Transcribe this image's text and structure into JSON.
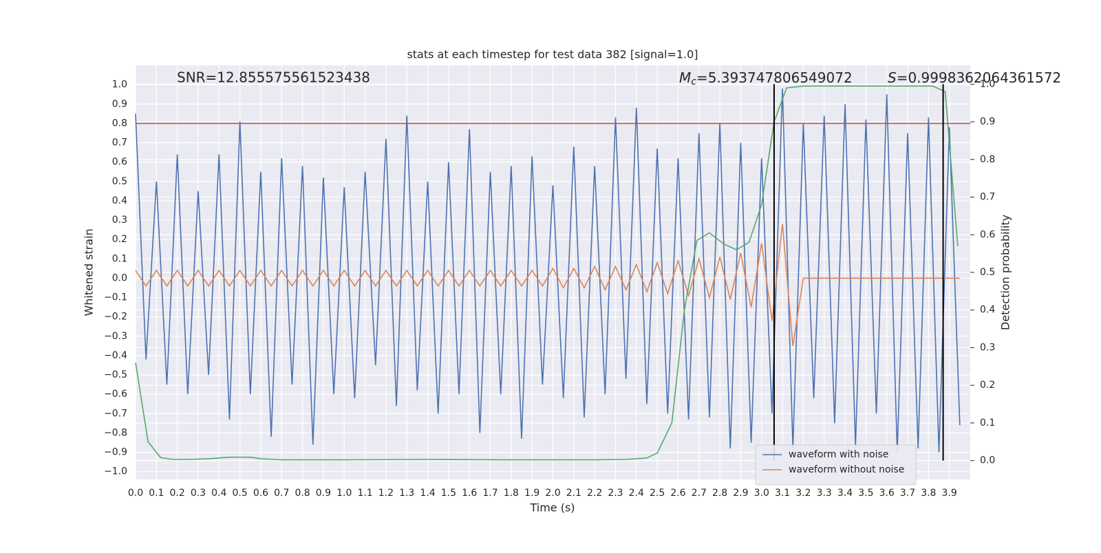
{
  "chart_data": {
    "type": "line",
    "title": "stats at each timestep for test data 382 [signal=1.0]",
    "xlabel": "Time (s)",
    "ylabel": "Whitened strain",
    "y2label": "Detection probability",
    "annotations": {
      "snr": "SNR=12.855575561523438",
      "mc": {
        "symbol": "M",
        "subscript": "c",
        "text": "=5.393747806549072"
      },
      "s": {
        "symbol": "S",
        "text": "=0.9998362064361572"
      }
    },
    "xlim": [
      0,
      4.0
    ],
    "ylim": [
      -1.04,
      1.1
    ],
    "y2lim": [
      -0.05,
      1.05
    ],
    "grid": true,
    "legend": "lower right",
    "xticks": [
      {
        "value": 0,
        "label": "0.0"
      },
      {
        "value": 0.1,
        "label": "0.1"
      },
      {
        "value": 0.2,
        "label": "0.2"
      },
      {
        "value": 0.3,
        "label": "0.3"
      },
      {
        "value": 0.4,
        "label": "0.4"
      },
      {
        "value": 0.5,
        "label": "0.5"
      },
      {
        "value": 0.6,
        "label": "0.6"
      },
      {
        "value": 0.7,
        "label": "0.7"
      },
      {
        "value": 0.8,
        "label": "0.8"
      },
      {
        "value": 0.9,
        "label": "0.9"
      },
      {
        "value": 1,
        "label": "1.0"
      },
      {
        "value": 1.1,
        "label": "1.1"
      },
      {
        "value": 1.2,
        "label": "1.2"
      },
      {
        "value": 1.3,
        "label": "1.3"
      },
      {
        "value": 1.4,
        "label": "1.4"
      },
      {
        "value": 1.5,
        "label": "1.5"
      },
      {
        "value": 1.6,
        "label": "1.6"
      },
      {
        "value": 1.7,
        "label": "1.7"
      },
      {
        "value": 1.8,
        "label": "1.8"
      },
      {
        "value": 1.9,
        "label": "1.9"
      },
      {
        "value": 2,
        "label": "2.0"
      },
      {
        "value": 2.1,
        "label": "2.1"
      },
      {
        "value": 2.2,
        "label": "2.2"
      },
      {
        "value": 2.3,
        "label": "2.3"
      },
      {
        "value": 2.4,
        "label": "2.4"
      },
      {
        "value": 2.5,
        "label": "2.5"
      },
      {
        "value": 2.6,
        "label": "2.6"
      },
      {
        "value": 2.7,
        "label": "2.7"
      },
      {
        "value": 2.8,
        "label": "2.8"
      },
      {
        "value": 2.9,
        "label": "2.9"
      },
      {
        "value": 3,
        "label": "3.0"
      },
      {
        "value": 3.1,
        "label": "3.1"
      },
      {
        "value": 3.2,
        "label": "3.2"
      },
      {
        "value": 3.3,
        "label": "3.3"
      },
      {
        "value": 3.4,
        "label": "3.4"
      },
      {
        "value": 3.5,
        "label": "3.5"
      },
      {
        "value": 3.6,
        "label": "3.6"
      },
      {
        "value": 3.7,
        "label": "3.7"
      },
      {
        "value": 3.8,
        "label": "3.8"
      },
      {
        "value": 3.9,
        "label": "3.9"
      }
    ],
    "yticks": [
      {
        "value": -1,
        "label": "−1.0"
      },
      {
        "value": -0.9,
        "label": "−0.9"
      },
      {
        "value": -0.8,
        "label": "−0.8"
      },
      {
        "value": -0.7,
        "label": "−0.7"
      },
      {
        "value": -0.6,
        "label": "−0.6"
      },
      {
        "value": -0.5,
        "label": "−0.5"
      },
      {
        "value": -0.4,
        "label": "−0.4"
      },
      {
        "value": -0.3,
        "label": "−0.3"
      },
      {
        "value": -0.2,
        "label": "−0.2"
      },
      {
        "value": -0.1,
        "label": "−0.1"
      },
      {
        "value": 0,
        "label": "0.0"
      },
      {
        "value": 0.1,
        "label": "0.1"
      },
      {
        "value": 0.2,
        "label": "0.2"
      },
      {
        "value": 0.3,
        "label": "0.3"
      },
      {
        "value": 0.4,
        "label": "0.4"
      },
      {
        "value": 0.5,
        "label": "0.5"
      },
      {
        "value": 0.6,
        "label": "0.6"
      },
      {
        "value": 0.7,
        "label": "0.7"
      },
      {
        "value": 0.8,
        "label": "0.8"
      },
      {
        "value": 0.9,
        "label": "0.9"
      },
      {
        "value": 1,
        "label": "1.0"
      }
    ],
    "y2ticks": [
      {
        "value": 0,
        "label": "0.0"
      },
      {
        "value": 0.1,
        "label": "0.1"
      },
      {
        "value": 0.2,
        "label": "0.2"
      },
      {
        "value": 0.3,
        "label": "0.3"
      },
      {
        "value": 0.4,
        "label": "0.4"
      },
      {
        "value": 0.5,
        "label": "0.5"
      },
      {
        "value": 0.6,
        "label": "0.6"
      },
      {
        "value": 0.7,
        "label": "0.7"
      },
      {
        "value": 0.8,
        "label": "0.8"
      },
      {
        "value": 0.9,
        "label": "0.9"
      },
      {
        "value": 1,
        "label": "1.0"
      }
    ],
    "x": [
      0,
      0.05,
      0.1,
      0.15,
      0.2,
      0.25,
      0.3,
      0.35,
      0.4,
      0.45,
      0.5,
      0.55,
      0.6,
      0.65,
      0.7,
      0.75,
      0.8,
      0.85,
      0.9,
      0.95,
      1,
      1.05,
      1.1,
      1.15,
      1.2,
      1.25,
      1.3,
      1.35,
      1.4,
      1.45,
      1.5,
      1.55,
      1.6,
      1.65,
      1.7,
      1.75,
      1.8,
      1.85,
      1.9,
      1.95,
      2,
      2.05,
      2.1,
      2.15,
      2.2,
      2.25,
      2.3,
      2.35,
      2.4,
      2.45,
      2.5,
      2.55,
      2.6,
      2.65,
      2.7,
      2.75,
      2.8,
      2.85,
      2.9,
      2.95,
      3,
      3.05,
      3.1,
      3.15,
      3.2,
      3.25,
      3.3,
      3.35,
      3.4,
      3.45,
      3.5,
      3.55,
      3.6,
      3.65,
      3.7,
      3.75,
      3.8,
      3.85,
      3.9,
      3.95
    ],
    "series": [
      {
        "name": "waveform with noise",
        "color": "#4c72b0",
        "values": [
          0.85,
          -0.42,
          0.5,
          -0.55,
          0.64,
          -0.6,
          0.45,
          -0.5,
          0.64,
          -0.73,
          0.81,
          -0.6,
          0.55,
          -0.82,
          0.62,
          -0.55,
          0.58,
          -0.86,
          0.52,
          -0.6,
          0.47,
          -0.62,
          0.55,
          -0.45,
          0.72,
          -0.66,
          0.84,
          -0.58,
          0.5,
          -0.7,
          0.6,
          -0.6,
          0.77,
          -0.8,
          0.55,
          -0.6,
          0.58,
          -0.83,
          0.63,
          -0.55,
          0.48,
          -0.62,
          0.68,
          -0.72,
          0.58,
          -0.6,
          0.83,
          -0.52,
          0.88,
          -0.65,
          0.67,
          -0.7,
          0.62,
          -0.73,
          0.75,
          -0.72,
          0.8,
          -0.88,
          0.7,
          -0.85,
          0.62,
          -0.7,
          0.98,
          -0.88,
          0.8,
          -0.62,
          0.84,
          -0.75,
          0.9,
          -0.87,
          0.82,
          -0.7,
          0.95,
          -0.9,
          0.75,
          -0.88,
          0.83,
          -0.9,
          0.78,
          -0.76
        ]
      },
      {
        "name": "waveform without noise",
        "color": "#dd8452",
        "values": [
          0.04,
          -0.04,
          0.04,
          -0.04,
          0.04,
          -0.04,
          0.04,
          -0.04,
          0.04,
          -0.04,
          0.04,
          -0.04,
          0.04,
          -0.04,
          0.04,
          -0.04,
          0.04,
          -0.04,
          0.04,
          -0.04,
          0.04,
          -0.04,
          0.04,
          -0.04,
          0.04,
          -0.04,
          0.04,
          -0.04,
          0.04,
          -0.04,
          0.04,
          -0.04,
          0.04,
          -0.04,
          0.04,
          -0.04,
          0.04,
          -0.04,
          0.04,
          -0.04,
          0.05,
          -0.05,
          0.05,
          -0.05,
          0.06,
          -0.06,
          0.06,
          -0.06,
          0.07,
          -0.07,
          0.08,
          -0.08,
          0.09,
          -0.09,
          0.1,
          -0.1,
          0.11,
          -0.11,
          0.13,
          -0.15,
          0.18,
          -0.22,
          0.28,
          -0.35,
          0,
          0,
          0,
          0,
          0,
          0,
          0,
          0,
          0,
          0,
          0,
          0,
          0,
          0,
          0,
          0
        ]
      },
      {
        "color": "#55a868",
        "axis": "y2",
        "x": [
          0,
          0.06,
          0.12,
          0.18,
          0.25,
          0.35,
          0.45,
          0.5,
          0.55,
          0.6,
          0.7,
          1.0,
          1.4,
          1.8,
          2.2,
          2.35,
          2.45,
          2.5,
          2.57,
          2.63,
          2.69,
          2.75,
          2.82,
          2.88,
          2.94,
          3.0,
          3.06,
          3.12,
          3.2,
          3.5,
          3.82,
          3.88,
          3.94
        ],
        "values": [
          0.26,
          0.05,
          0.008,
          0.003,
          0.003,
          0.005,
          0.009,
          0.009,
          0.009,
          0.005,
          0.002,
          0.002,
          0.003,
          0.002,
          0.002,
          0.003,
          0.007,
          0.02,
          0.1,
          0.4,
          0.585,
          0.605,
          0.575,
          0.56,
          0.58,
          0.68,
          0.9,
          0.99,
          0.995,
          0.995,
          0.995,
          0.98,
          0.57
        ]
      }
    ],
    "hlines": [
      {
        "y": 0.8,
        "color": "#c44e52"
      }
    ],
    "vlines": [
      {
        "x": 3.06,
        "ymin": 0,
        "ymax": 1,
        "color": "#000000"
      },
      {
        "x": 3.87,
        "ymin": 0,
        "ymax": 1,
        "color": "#000000"
      }
    ]
  }
}
